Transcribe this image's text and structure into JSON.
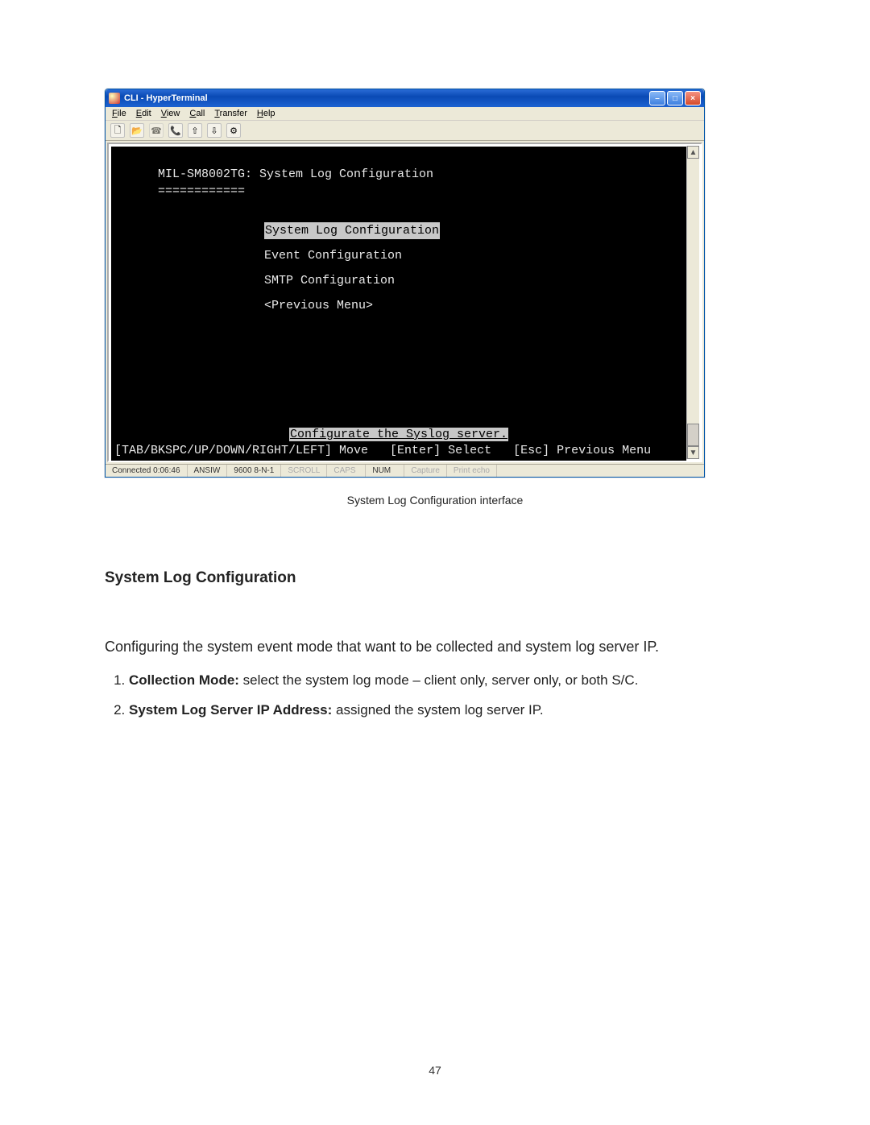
{
  "window": {
    "title": "CLI - HyperTerminal",
    "minimize": "–",
    "maximize": "□",
    "close": "×"
  },
  "menubar": {
    "file": "File",
    "edit": "Edit",
    "view": "View",
    "call": "Call",
    "transfer": "Transfer",
    "help": "Help"
  },
  "toolbar_icons": {
    "new": "🗋",
    "open": "📂",
    "call": "☎",
    "hangup": "📞",
    "send": "⇧",
    "recv": "⇩",
    "props": "⚙"
  },
  "terminal": {
    "header": "MIL-SM8002TG: System Log Configuration",
    "divider": "============",
    "items": [
      "System Log Configuration",
      "Event Configuration",
      "SMTP Configuration",
      "<Previous Menu>"
    ],
    "selected_index": 0,
    "help_line": "Configurate the Syslog server.",
    "nav_line": "[TAB/BKSPC/UP/DOWN/RIGHT/LEFT] Move   [Enter] Select   [Esc] Previous Menu"
  },
  "statusbar": {
    "connected": "Connected 0:06:46",
    "emulation": "ANSIW",
    "settings": "9600 8-N-1",
    "scroll": "SCROLL",
    "caps": "CAPS",
    "num": "NUM",
    "capture": "Capture",
    "printecho": "Print echo"
  },
  "caption": "System Log Configuration interface",
  "section_heading": "System Log Configuration",
  "body_paragraph": "Configuring the system event mode that want to be collected and system log server IP.",
  "list": [
    {
      "bold": "Collection Mode:",
      "rest": " select the system log mode – client only, server only, or both S/C."
    },
    {
      "bold": "System Log Server IP Address:",
      "rest": " assigned the system log server IP."
    }
  ],
  "page_number": "47"
}
